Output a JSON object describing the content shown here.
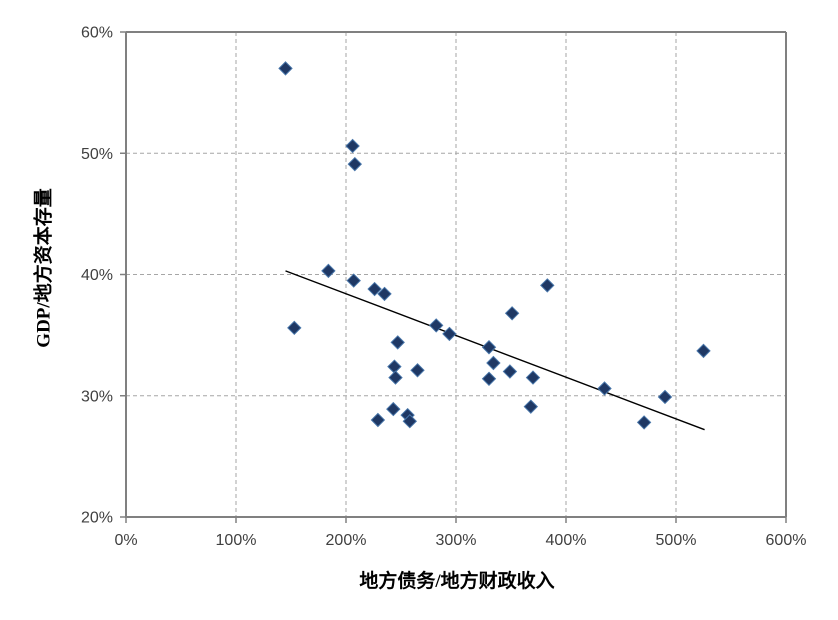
{
  "chart_data": {
    "type": "scatter",
    "xlabel": "地方债务/地方财政收入",
    "ylabel": "GDP/地方资本存量",
    "xlim": [
      0,
      600
    ],
    "ylim": [
      20,
      60
    ],
    "xticks": [
      0,
      100,
      200,
      300,
      400,
      500,
      600
    ],
    "yticks": [
      20,
      30,
      40,
      50,
      60
    ],
    "x_tick_labels": [
      "0%",
      "100%",
      "200%",
      "300%",
      "400%",
      "500%",
      "600%"
    ],
    "y_tick_labels": [
      "20%",
      "30%",
      "40%",
      "50%",
      "60%"
    ],
    "grid": "dashed",
    "legend": "none",
    "title": "",
    "series": [
      {
        "name": "scatter-points",
        "marker": "diamond",
        "points": [
          [
            145,
            57.0
          ],
          [
            206,
            50.6
          ],
          [
            208,
            49.1
          ],
          [
            184,
            40.3
          ],
          [
            207,
            39.5
          ],
          [
            226,
            38.8
          ],
          [
            235,
            38.4
          ],
          [
            153,
            35.6
          ],
          [
            282,
            35.8
          ],
          [
            294,
            35.1
          ],
          [
            247,
            34.4
          ],
          [
            244,
            32.4
          ],
          [
            265,
            32.1
          ],
          [
            245,
            31.5
          ],
          [
            243,
            28.9
          ],
          [
            229,
            28.0
          ],
          [
            256,
            28.4
          ],
          [
            258,
            27.9
          ],
          [
            383,
            39.1
          ],
          [
            351,
            36.8
          ],
          [
            330,
            34.0
          ],
          [
            334,
            32.7
          ],
          [
            349,
            32.0
          ],
          [
            330,
            31.4
          ],
          [
            370,
            31.5
          ],
          [
            368,
            29.1
          ],
          [
            435,
            30.6
          ],
          [
            490,
            29.9
          ],
          [
            471,
            27.8
          ],
          [
            525,
            33.7
          ]
        ]
      }
    ],
    "trendline": {
      "x1": 145,
      "y1": 40.3,
      "x2": 526,
      "y2": 27.2
    },
    "colors": {
      "marker_fill": "#1F3864",
      "marker_stroke": "#4674A8",
      "trendline": "#000000",
      "gridline": "#A6A6A6",
      "axis": "#808080",
      "tick_label": "#404040",
      "axis_title": "#000000",
      "background": "#FFFFFF"
    }
  }
}
